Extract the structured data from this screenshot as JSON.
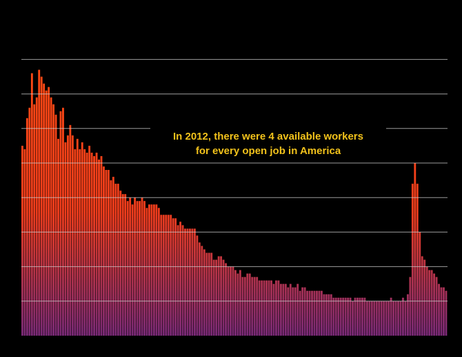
{
  "chart_data": {
    "type": "bar",
    "title": "",
    "xlabel": "",
    "ylabel": "",
    "ylim": [
      0,
      8
    ],
    "grid": true,
    "gridlines": [
      1,
      2,
      3,
      4,
      5,
      6,
      7,
      8
    ],
    "gradient_colors": {
      "top": "#ff4a12",
      "bottom": "#7a2a78"
    },
    "annotation": {
      "lines": [
        "In 2012, there were 4 available workers",
        "for every open job in America"
      ],
      "color": "#f2c21b"
    },
    "values": [
      5.5,
      5.4,
      6.3,
      6.6,
      7.6,
      6.7,
      6.9,
      7.7,
      7.5,
      7.3,
      7.1,
      7.2,
      6.9,
      6.7,
      6.4,
      5.7,
      6.5,
      6.6,
      5.6,
      5.8,
      6.1,
      5.8,
      5.4,
      5.7,
      5.4,
      5.6,
      5.4,
      5.3,
      5.5,
      5.3,
      5.2,
      5.3,
      5.1,
      5.2,
      4.9,
      4.8,
      4.8,
      4.5,
      4.6,
      4.4,
      4.4,
      4.2,
      4.1,
      4.1,
      3.9,
      4.0,
      3.8,
      4.0,
      3.9,
      3.9,
      4.0,
      3.9,
      3.7,
      3.8,
      3.8,
      3.8,
      3.8,
      3.7,
      3.5,
      3.5,
      3.5,
      3.5,
      3.5,
      3.4,
      3.4,
      3.2,
      3.3,
      3.2,
      3.1,
      3.1,
      3.1,
      3.1,
      3.1,
      2.9,
      2.7,
      2.6,
      2.5,
      2.4,
      2.4,
      2.4,
      2.2,
      2.2,
      2.3,
      2.3,
      2.2,
      2.1,
      2.0,
      2.0,
      2.0,
      1.9,
      1.8,
      1.9,
      1.7,
      1.7,
      1.8,
      1.8,
      1.7,
      1.7,
      1.7,
      1.6,
      1.6,
      1.6,
      1.6,
      1.6,
      1.6,
      1.5,
      1.6,
      1.6,
      1.5,
      1.5,
      1.5,
      1.4,
      1.5,
      1.4,
      1.4,
      1.5,
      1.3,
      1.4,
      1.4,
      1.3,
      1.3,
      1.3,
      1.3,
      1.3,
      1.3,
      1.3,
      1.2,
      1.2,
      1.2,
      1.2,
      1.1,
      1.1,
      1.1,
      1.1,
      1.1,
      1.1,
      1.1,
      1.1,
      1.0,
      1.1,
      1.1,
      1.1,
      1.1,
      1.1,
      1.0,
      1.0,
      1.0,
      1.0,
      1.0,
      1.0,
      1.0,
      1.0,
      1.0,
      1.0,
      1.1,
      1.0,
      1.0,
      1.0,
      1.0,
      1.1,
      1.0,
      1.2,
      1.7,
      4.4,
      5.0,
      4.4,
      3.0,
      2.3,
      2.2,
      2.0,
      1.9,
      1.9,
      1.8,
      1.7,
      1.5,
      1.4,
      1.4,
      1.3
    ]
  }
}
